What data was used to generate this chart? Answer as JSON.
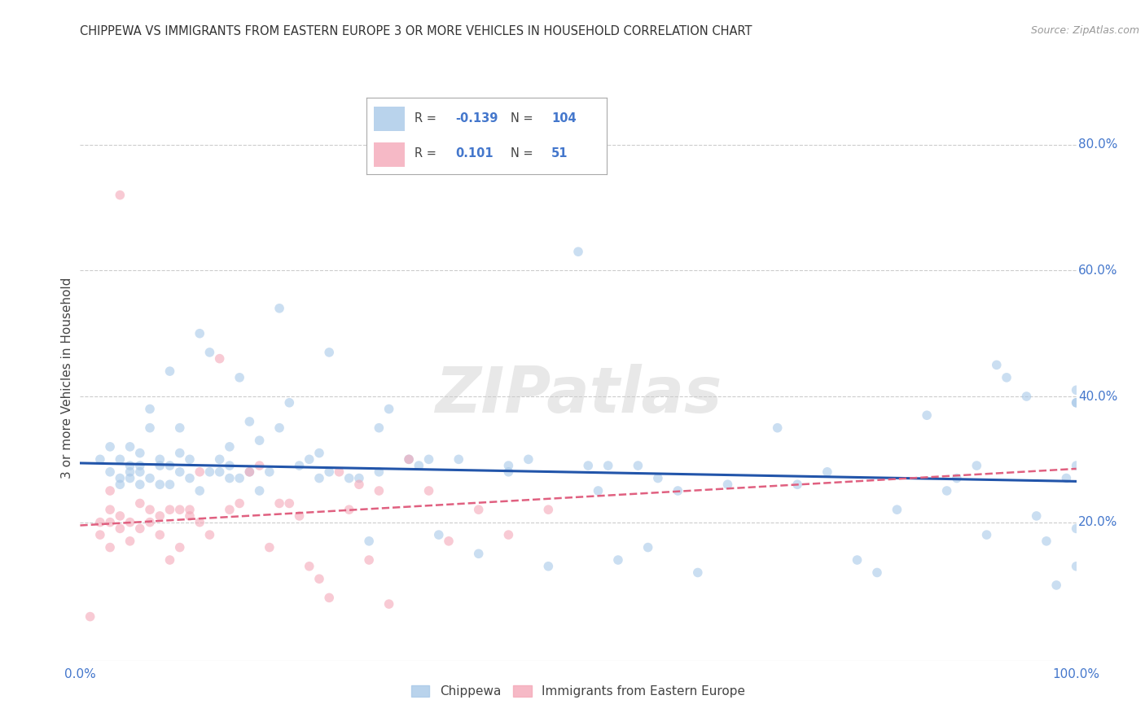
{
  "title": "CHIPPEWA VS IMMIGRANTS FROM EASTERN EUROPE 3 OR MORE VEHICLES IN HOUSEHOLD CORRELATION CHART",
  "source": "Source: ZipAtlas.com",
  "ylabel": "3 or more Vehicles in Household",
  "ytick_labels": [
    "20.0%",
    "40.0%",
    "60.0%",
    "80.0%"
  ],
  "ytick_values": [
    0.2,
    0.4,
    0.6,
    0.8
  ],
  "xlim": [
    0.0,
    1.0
  ],
  "ylim": [
    -0.02,
    0.88
  ],
  "blue_scatter_x": [
    0.02,
    0.03,
    0.03,
    0.04,
    0.04,
    0.04,
    0.05,
    0.05,
    0.05,
    0.05,
    0.06,
    0.06,
    0.06,
    0.06,
    0.07,
    0.07,
    0.07,
    0.08,
    0.08,
    0.08,
    0.09,
    0.09,
    0.09,
    0.1,
    0.1,
    0.1,
    0.11,
    0.11,
    0.12,
    0.12,
    0.13,
    0.13,
    0.14,
    0.14,
    0.15,
    0.15,
    0.15,
    0.16,
    0.16,
    0.17,
    0.17,
    0.18,
    0.18,
    0.19,
    0.2,
    0.2,
    0.21,
    0.22,
    0.23,
    0.24,
    0.24,
    0.25,
    0.25,
    0.27,
    0.28,
    0.29,
    0.3,
    0.3,
    0.31,
    0.33,
    0.34,
    0.35,
    0.36,
    0.38,
    0.4,
    0.43,
    0.43,
    0.45,
    0.47,
    0.5,
    0.51,
    0.52,
    0.53,
    0.54,
    0.56,
    0.57,
    0.58,
    0.6,
    0.62,
    0.65,
    0.7,
    0.72,
    0.75,
    0.78,
    0.8,
    0.82,
    0.85,
    0.87,
    0.88,
    0.9,
    0.91,
    0.92,
    0.93,
    0.95,
    0.96,
    0.97,
    0.98,
    0.99,
    1.0,
    1.0,
    1.0,
    1.0,
    1.0,
    1.0
  ],
  "blue_scatter_y": [
    0.3,
    0.28,
    0.32,
    0.26,
    0.27,
    0.3,
    0.28,
    0.29,
    0.32,
    0.27,
    0.26,
    0.29,
    0.31,
    0.28,
    0.27,
    0.35,
    0.38,
    0.26,
    0.29,
    0.3,
    0.44,
    0.29,
    0.26,
    0.31,
    0.35,
    0.28,
    0.27,
    0.3,
    0.25,
    0.5,
    0.47,
    0.28,
    0.3,
    0.28,
    0.29,
    0.27,
    0.32,
    0.27,
    0.43,
    0.36,
    0.28,
    0.33,
    0.25,
    0.28,
    0.35,
    0.54,
    0.39,
    0.29,
    0.3,
    0.27,
    0.31,
    0.28,
    0.47,
    0.27,
    0.27,
    0.17,
    0.35,
    0.28,
    0.38,
    0.3,
    0.29,
    0.3,
    0.18,
    0.3,
    0.15,
    0.29,
    0.28,
    0.3,
    0.13,
    0.63,
    0.29,
    0.25,
    0.29,
    0.14,
    0.29,
    0.16,
    0.27,
    0.25,
    0.12,
    0.26,
    0.35,
    0.26,
    0.28,
    0.14,
    0.12,
    0.22,
    0.37,
    0.25,
    0.27,
    0.29,
    0.18,
    0.45,
    0.43,
    0.4,
    0.21,
    0.17,
    0.1,
    0.27,
    0.41,
    0.39,
    0.39,
    0.19,
    0.13,
    0.29
  ],
  "pink_scatter_x": [
    0.01,
    0.02,
    0.02,
    0.03,
    0.03,
    0.03,
    0.03,
    0.04,
    0.04,
    0.04,
    0.05,
    0.05,
    0.06,
    0.06,
    0.07,
    0.07,
    0.08,
    0.08,
    0.09,
    0.09,
    0.1,
    0.1,
    0.11,
    0.11,
    0.12,
    0.12,
    0.13,
    0.14,
    0.15,
    0.16,
    0.17,
    0.18,
    0.19,
    0.2,
    0.21,
    0.22,
    0.23,
    0.24,
    0.25,
    0.26,
    0.27,
    0.28,
    0.29,
    0.3,
    0.31,
    0.33,
    0.35,
    0.37,
    0.4,
    0.43,
    0.47
  ],
  "pink_scatter_y": [
    0.05,
    0.2,
    0.18,
    0.22,
    0.2,
    0.16,
    0.25,
    0.19,
    0.21,
    0.72,
    0.2,
    0.17,
    0.23,
    0.19,
    0.2,
    0.22,
    0.18,
    0.21,
    0.22,
    0.14,
    0.22,
    0.16,
    0.22,
    0.21,
    0.28,
    0.2,
    0.18,
    0.46,
    0.22,
    0.23,
    0.28,
    0.29,
    0.16,
    0.23,
    0.23,
    0.21,
    0.13,
    0.11,
    0.08,
    0.28,
    0.22,
    0.26,
    0.14,
    0.25,
    0.07,
    0.3,
    0.25,
    0.17,
    0.22,
    0.18,
    0.22
  ],
  "blue_line_x": [
    0.0,
    1.0
  ],
  "blue_line_y_start": 0.294,
  "blue_line_y_end": 0.265,
  "pink_line_x": [
    0.0,
    1.0
  ],
  "pink_line_y_start": 0.195,
  "pink_line_y_end": 0.285,
  "blue_color": "#a8c8e8",
  "pink_color": "#f4a8b8",
  "blue_line_color": "#2255aa",
  "pink_line_color": "#e06080",
  "scatter_alpha": 0.6,
  "scatter_size": 70,
  "background_color": "#ffffff",
  "watermark_text": "ZIPatlas",
  "grid_color": "#cccccc",
  "legend_R1": "-0.139",
  "legend_N1": "104",
  "legend_R2": "0.101",
  "legend_N2": "51",
  "label1": "Chippewa",
  "label2": "Immigrants from Eastern Europe"
}
